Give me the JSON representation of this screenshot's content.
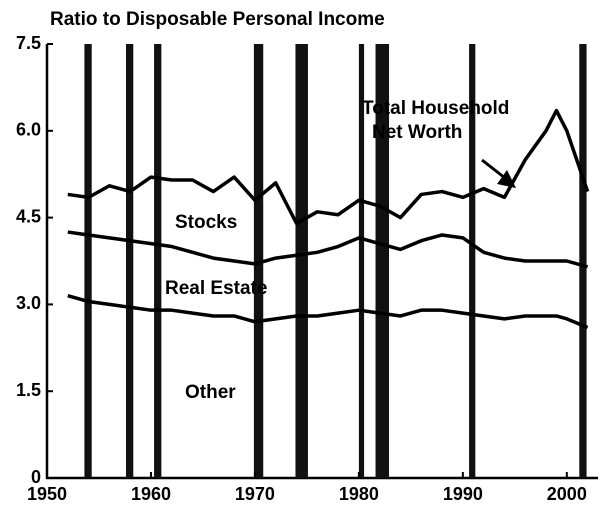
{
  "chart_data": {
    "type": "stacked-line",
    "title": "Ratio to Disposable Personal Income",
    "x": [
      1952,
      1954,
      1956,
      1958,
      1960,
      1962,
      1964,
      1966,
      1968,
      1970,
      1972,
      1974,
      1976,
      1978,
      1980,
      1982,
      1984,
      1986,
      1988,
      1990,
      1992,
      1994,
      1996,
      1998,
      1999,
      2000,
      2002
    ],
    "series": [
      {
        "name": "Other",
        "color": "#000000",
        "values": [
          3.15,
          3.05,
          3.0,
          2.95,
          2.9,
          2.9,
          2.85,
          2.8,
          2.8,
          2.7,
          2.75,
          2.8,
          2.8,
          2.85,
          2.9,
          2.85,
          2.8,
          2.9,
          2.9,
          2.85,
          2.8,
          2.75,
          2.8,
          2.8,
          2.8,
          2.75,
          2.6
        ]
      },
      {
        "name": "Real Estate",
        "color": "#000000",
        "values": [
          1.1,
          1.15,
          1.15,
          1.15,
          1.15,
          1.1,
          1.05,
          1.0,
          0.95,
          1.0,
          1.05,
          1.05,
          1.1,
          1.15,
          1.25,
          1.2,
          1.15,
          1.2,
          1.3,
          1.3,
          1.1,
          1.05,
          0.95,
          0.95,
          0.95,
          1.0,
          1.05
        ]
      },
      {
        "name": "Stocks",
        "color": "#000000",
        "values": [
          0.65,
          0.65,
          0.9,
          0.85,
          1.15,
          1.15,
          1.25,
          1.15,
          1.45,
          1.1,
          1.3,
          0.55,
          0.7,
          0.55,
          0.65,
          0.65,
          0.55,
          0.8,
          0.75,
          0.7,
          1.1,
          1.05,
          1.75,
          2.25,
          2.6,
          2.25,
          1.3
        ]
      }
    ],
    "annotation": [
      "Total Household",
      "Net Worth"
    ],
    "shaded_periods": [
      [
        1953.6,
        1954.3
      ],
      [
        1957.6,
        1958.3
      ],
      [
        1960.3,
        1961.0
      ],
      [
        1969.9,
        1970.8
      ],
      [
        1973.9,
        1975.1
      ],
      [
        1980.0,
        1980.5
      ],
      [
        1981.6,
        1982.9
      ],
      [
        1990.6,
        1991.2
      ],
      [
        2001.2,
        2001.9
      ]
    ],
    "xlim": [
      1950,
      2003
    ],
    "ylim": [
      0,
      7.5
    ],
    "xticks": [
      1950,
      1960,
      1970,
      1980,
      1990,
      2000
    ],
    "yticks": [
      0,
      1.5,
      {
        "value": 3,
        "label": "3.0"
      },
      4.5,
      {
        "value": 6,
        "label": "6.0"
      },
      7.5
    ]
  }
}
